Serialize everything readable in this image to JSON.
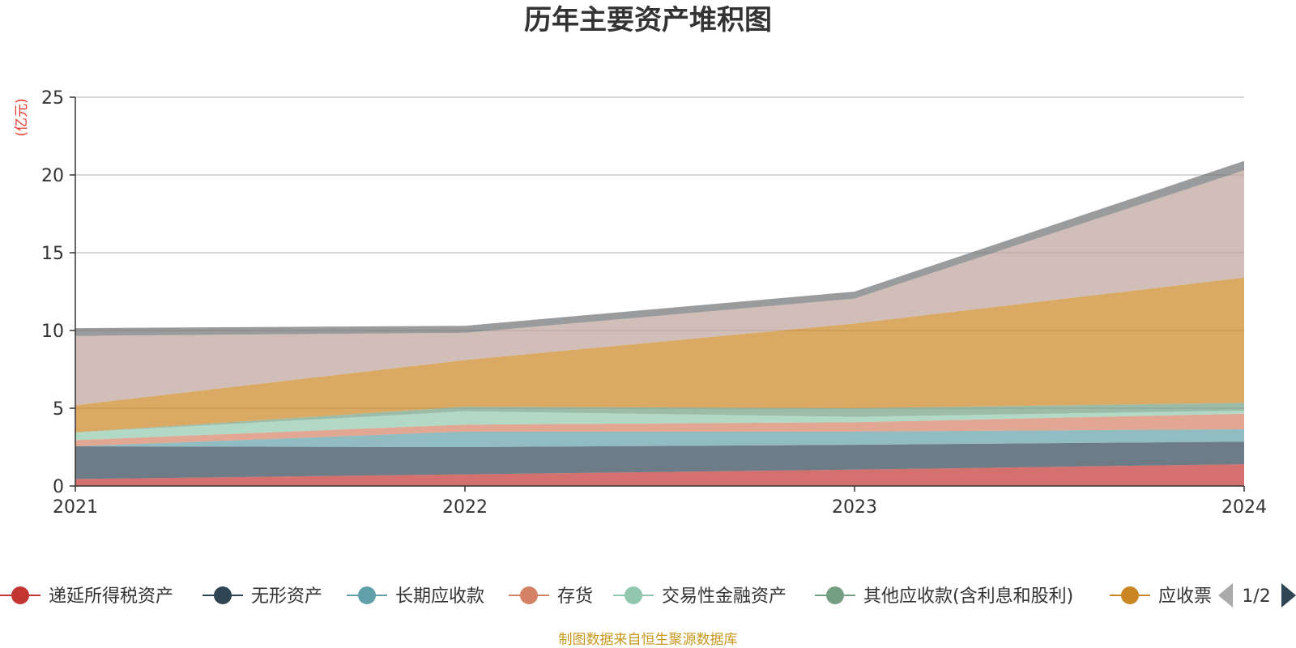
{
  "chart_data": {
    "type": "area",
    "title": "历年主要资产堆积图",
    "ylabel": "(亿元)",
    "x": [
      "2021",
      "2022",
      "2023",
      "2024"
    ],
    "ylim": [
      0,
      25
    ],
    "yticks": [
      0,
      5,
      10,
      15,
      20,
      25
    ],
    "grid": true,
    "stacked": true,
    "legend_position": "bottom",
    "series": [
      {
        "name": "递延所得税资产",
        "color": "#c23531",
        "values": [
          0.45,
          0.75,
          1.05,
          1.4
        ]
      },
      {
        "name": "无形资产",
        "color": "#2f4554",
        "values": [
          2.1,
          1.75,
          1.6,
          1.45
        ]
      },
      {
        "name": "长期应收款",
        "color": "#61a0a8",
        "values": [
          0.0,
          1.0,
          0.85,
          0.8
        ]
      },
      {
        "name": "存货",
        "color": "#d48265",
        "values": [
          0.4,
          0.45,
          0.6,
          1.0
        ]
      },
      {
        "name": "交易性金融资产",
        "color": "#91c7ae",
        "values": [
          0.5,
          0.85,
          0.35,
          0.2
        ]
      },
      {
        "name": "其他应收款(含利息和股利)",
        "color": "#749f83",
        "values": [
          0.0,
          0.3,
          0.55,
          0.5
        ]
      },
      {
        "name": "应收票据及应收账款",
        "color": "#ca8622",
        "values": [
          1.75,
          3.0,
          5.45,
          8.05
        ]
      },
      {
        "name": "",
        "color": "#bda29a",
        "values": [
          4.45,
          1.75,
          1.6,
          6.9
        ]
      },
      {
        "name": "",
        "color": "#6e7074",
        "values": [
          0.5,
          0.45,
          0.45,
          0.6
        ]
      }
    ]
  },
  "legend": {
    "visible_items": [
      {
        "name": "递延所得税资产",
        "color": "#c23531"
      },
      {
        "name": "无形资产",
        "color": "#2f4554"
      },
      {
        "name": "长期应收款",
        "color": "#61a0a8"
      },
      {
        "name": "存货",
        "color": "#d48265"
      },
      {
        "name": "交易性金融资产",
        "color": "#91c7ae"
      },
      {
        "name": "其他应收款(含利息和股利)",
        "color": "#749f83"
      },
      {
        "name": "应收票",
        "color": "#ca8622"
      }
    ],
    "page": "1/2"
  },
  "source": "制图数据来自恒生聚源数据库"
}
